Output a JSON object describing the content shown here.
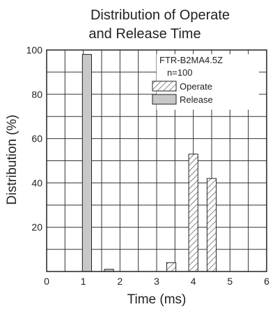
{
  "chart_data": {
    "type": "bar",
    "title_lines": [
      "Distribution of Operate",
      "and Release Time"
    ],
    "xlabel": "Time (ms)",
    "ylabel": "Distribution (%)",
    "xlim": [
      0,
      6
    ],
    "ylim": [
      0,
      100
    ],
    "x_ticks": [
      "0",
      "1",
      "2",
      "3",
      "4",
      "5",
      "6"
    ],
    "y_ticks": [
      "20",
      "40",
      "60",
      "80",
      "100"
    ],
    "bar_width": 0.25,
    "series": [
      {
        "name": "Operate",
        "pattern": "hatched",
        "points": [
          {
            "x": 3.4,
            "y": 4
          },
          {
            "x": 4.0,
            "y": 53
          },
          {
            "x": 4.5,
            "y": 42
          }
        ]
      },
      {
        "name": "Release",
        "pattern": "solid",
        "color": "#c8c8c8",
        "points": [
          {
            "x": 1.1,
            "y": 98
          },
          {
            "x": 1.7,
            "y": 1
          }
        ]
      }
    ],
    "legend": {
      "model": "FTR-B2MA4.5Z",
      "sample": "n=100",
      "position": "top-right"
    },
    "grid": true
  }
}
